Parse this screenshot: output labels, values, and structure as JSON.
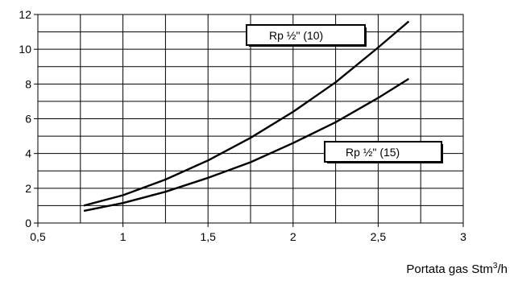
{
  "chart_data": {
    "type": "line",
    "xlabel": "Portata gas Stm",
    "xlabel_sup": "3",
    "xlabel_unit": "/h",
    "xlim": [
      0.5,
      3
    ],
    "ylim": [
      0,
      12
    ],
    "x_ticks": [
      "0,5",
      "1",
      "1,5",
      "2",
      "2,5",
      "3"
    ],
    "y_ticks": [
      "0",
      "2",
      "4",
      "6",
      "8",
      "10",
      "12"
    ],
    "grid": true,
    "series": [
      {
        "name": "Rp ½\" (10)",
        "x": [
          0.77,
          1.0,
          1.25,
          1.5,
          1.75,
          2.0,
          2.25,
          2.5,
          2.68
        ],
        "y": [
          1.0,
          1.6,
          2.5,
          3.6,
          4.9,
          6.4,
          8.1,
          10.1,
          11.6
        ]
      },
      {
        "name": "Rp ½\" (15)",
        "x": [
          0.77,
          1.0,
          1.25,
          1.5,
          1.75,
          2.0,
          2.25,
          2.5,
          2.68
        ],
        "y": [
          0.7,
          1.15,
          1.8,
          2.6,
          3.5,
          4.6,
          5.8,
          7.2,
          8.3
        ]
      }
    ]
  }
}
